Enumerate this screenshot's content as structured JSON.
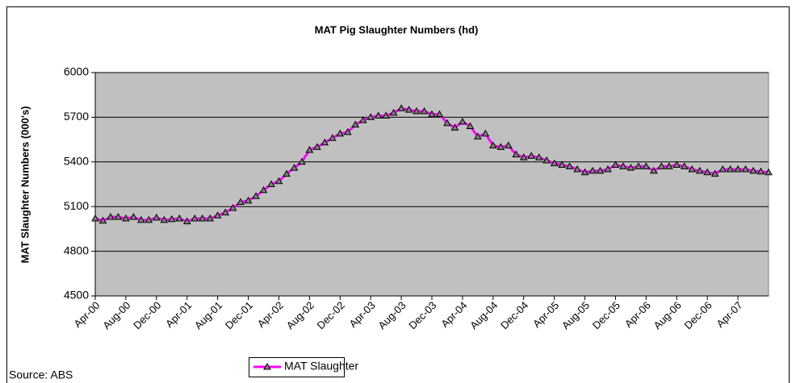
{
  "chart_data": {
    "type": "line",
    "title": "MAT Pig Slaughter Numbers (hd)",
    "y_label": "MAT Slaughter Numbers (000's)",
    "source": "Source: ABS",
    "categories": [
      "Apr-00",
      null,
      null,
      null,
      "Aug-00",
      null,
      null,
      null,
      "Dec-00",
      null,
      null,
      null,
      "Apr-01",
      null,
      null,
      null,
      "Aug-01",
      null,
      null,
      null,
      "Dec-01",
      null,
      null,
      null,
      "Apr-02",
      null,
      null,
      null,
      "Aug-02",
      null,
      null,
      null,
      "Dec-02",
      null,
      null,
      null,
      "Apr-03",
      null,
      null,
      null,
      "Aug-03",
      null,
      null,
      null,
      "Dec-03",
      null,
      null,
      null,
      "Apr-04",
      null,
      null,
      null,
      "Aug-04",
      null,
      null,
      null,
      "Dec-04",
      null,
      null,
      null,
      "Apr-05",
      null,
      null,
      null,
      "Aug-05",
      null,
      null,
      null,
      "Dec-05",
      null,
      null,
      null,
      "Apr-06",
      null,
      null,
      null,
      "Aug-06",
      null,
      null,
      null,
      "Dec-06",
      null,
      null,
      null,
      "Apr-07",
      null,
      null,
      null,
      null
    ],
    "series": [
      {
        "name": "MAT Slaughter",
        "color": "#ff00ff",
        "marker_color": "#808080",
        "values": [
          5020,
          5005,
          5030,
          5030,
          5020,
          5030,
          5010,
          5010,
          5025,
          5010,
          5015,
          5020,
          5000,
          5020,
          5020,
          5020,
          5040,
          5060,
          5090,
          5130,
          5140,
          5170,
          5210,
          5250,
          5270,
          5320,
          5360,
          5400,
          5480,
          5500,
          5530,
          5560,
          5590,
          5600,
          5650,
          5680,
          5700,
          5710,
          5710,
          5730,
          5760,
          5750,
          5740,
          5740,
          5720,
          5720,
          5660,
          5630,
          5670,
          5640,
          5570,
          5590,
          5510,
          5500,
          5510,
          5450,
          5430,
          5440,
          5430,
          5410,
          5390,
          5380,
          5370,
          5350,
          5330,
          5340,
          5340,
          5350,
          5380,
          5370,
          5360,
          5370,
          5370,
          5340,
          5370,
          5370,
          5380,
          5370,
          5350,
          5340,
          5330,
          5320,
          5350,
          5350,
          5350,
          5350,
          5340,
          5335,
          5330
        ]
      }
    ],
    "ylim": [
      4500,
      6000
    ],
    "yticks": [
      4500,
      4800,
      5100,
      5400,
      5700,
      6000
    ],
    "grid": true,
    "legend": "bottom",
    "plot_bg": "#c0c0c0"
  }
}
